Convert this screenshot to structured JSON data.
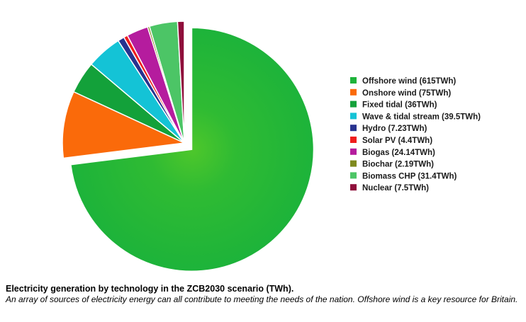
{
  "chart_data": {
    "type": "pie",
    "title": "",
    "unit": "TWh",
    "exploded": "Offshore wind",
    "legend_position": "right",
    "slices": [
      {
        "label": "Offshore wind (615TWh)",
        "name": "Offshore wind",
        "value": 615,
        "color": "#1db33a"
      },
      {
        "label": "Onshore wind (75TWh)",
        "name": "Onshore wind",
        "value": 75,
        "color": "#fa6a0a"
      },
      {
        "label": "Fixed tidal (36TWh)",
        "name": "Fixed tidal",
        "value": 36,
        "color": "#13a13a"
      },
      {
        "label": "Wave & tidal stream (39.5TWh)",
        "name": "Wave & tidal stream",
        "value": 39.5,
        "color": "#14c3d6"
      },
      {
        "label": "Hydro (7.23TWh)",
        "name": "Hydro",
        "value": 7.23,
        "color": "#27328f"
      },
      {
        "label": "Solar PV (4.4TWh)",
        "name": "Solar PV",
        "value": 4.4,
        "color": "#ef1d1d"
      },
      {
        "label": "Biogas (24.14TWh)",
        "name": "Biogas",
        "value": 24.14,
        "color": "#b51c9e"
      },
      {
        "label": "Biochar (2.19TWh)",
        "name": "Biochar",
        "value": 2.19,
        "color": "#7f8a1e"
      },
      {
        "label": "Biomass CHP (31.4TWh)",
        "name": "Biomass CHP",
        "value": 31.4,
        "color": "#4cc566"
      },
      {
        "label": "Nuclear (7.5TWh)",
        "name": "Nuclear",
        "value": 7.5,
        "color": "#8f0f3b"
      }
    ]
  },
  "caption": {
    "title": "Electricity generation by technology in the ZCB2030 scenario (TWh).",
    "text": "An array of sources of electricity energy can all contribute to meeting the needs of the nation. Offshore wind is a key resource for Britain."
  }
}
